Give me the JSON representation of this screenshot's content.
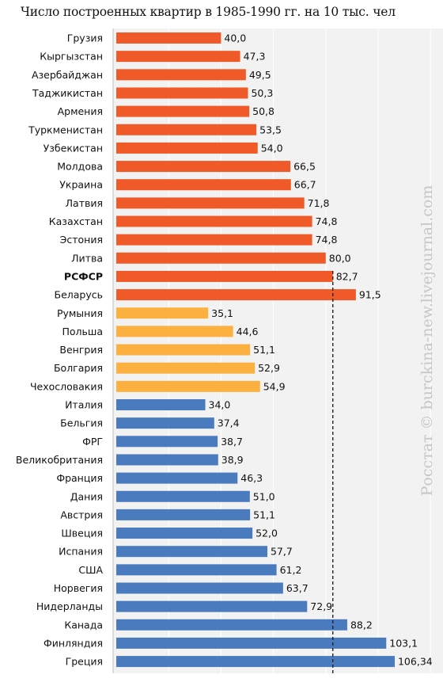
{
  "chart_data": {
    "type": "bar",
    "orientation": "horizontal",
    "title": "Число построенных квартир в 1985-1990 гг. на 10 тыс. чел",
    "categories": [
      "Грузия",
      "Кыргызстан",
      "Азербайджан",
      "Таджикистан",
      "Армения",
      "Туркменистан",
      "Узбекистан",
      "Молдова",
      "Украина",
      "Латвия",
      "Казахстан",
      "Эстония",
      "Литва",
      "РСФСР",
      "Беларусь",
      "Румыния",
      "Польша",
      "Венгрия",
      "Болгария",
      "Чехословакия",
      "Италия",
      "Бельгия",
      "ФРГ",
      "Великобритания",
      "Франция",
      "Дания",
      "Австрия",
      "Швеция",
      "Испания",
      "США",
      "Норвегия",
      "Нидерланды",
      "Канада",
      "Финляндия",
      "Греция"
    ],
    "values": [
      40.0,
      47.3,
      49.5,
      50.3,
      50.8,
      53.5,
      54.0,
      66.5,
      66.7,
      71.8,
      74.8,
      74.8,
      80.0,
      82.7,
      91.5,
      35.1,
      44.6,
      51.1,
      52.9,
      54.9,
      34.0,
      37.4,
      38.7,
      38.9,
      46.3,
      51.0,
      51.1,
      52.0,
      57.7,
      61.2,
      63.7,
      72.9,
      88.2,
      103.1,
      106.34
    ],
    "value_labels": [
      "40,0",
      "47,3",
      "49,5",
      "50,3",
      "50,8",
      "53,5",
      "54,0",
      "66,5",
      "66,7",
      "71,8",
      "74,8",
      "74,8",
      "80,0",
      "82,7",
      "91,5",
      "35,1",
      "44,6",
      "51,1",
      "52,9",
      "54,9",
      "34,0",
      "37,4",
      "38,7",
      "38,9",
      "46,3",
      "51,0",
      "51,1",
      "52,0",
      "57,7",
      "61,2",
      "63,7",
      "72,9",
      "88,2",
      "103,1",
      "106,34"
    ],
    "groups": [
      "ussr",
      "ussr",
      "ussr",
      "ussr",
      "ussr",
      "ussr",
      "ussr",
      "ussr",
      "ussr",
      "ussr",
      "ussr",
      "ussr",
      "ussr",
      "ussr",
      "ussr",
      "eastern",
      "eastern",
      "eastern",
      "eastern",
      "eastern",
      "western",
      "western",
      "western",
      "western",
      "western",
      "western",
      "western",
      "western",
      "western",
      "western",
      "western",
      "western",
      "western",
      "western",
      "western"
    ],
    "group_colors": {
      "ussr": "#f05a28",
      "eastern": "#fbb040",
      "western": "#4a7bbf"
    },
    "highlighted_category": "РСФСР",
    "reference_line": 82.7,
    "xlim": [
      0,
      120
    ],
    "grid": true,
    "xlabel": "",
    "ylabel": ""
  },
  "watermark": "Росстат © burckina-new.livejournal.com"
}
